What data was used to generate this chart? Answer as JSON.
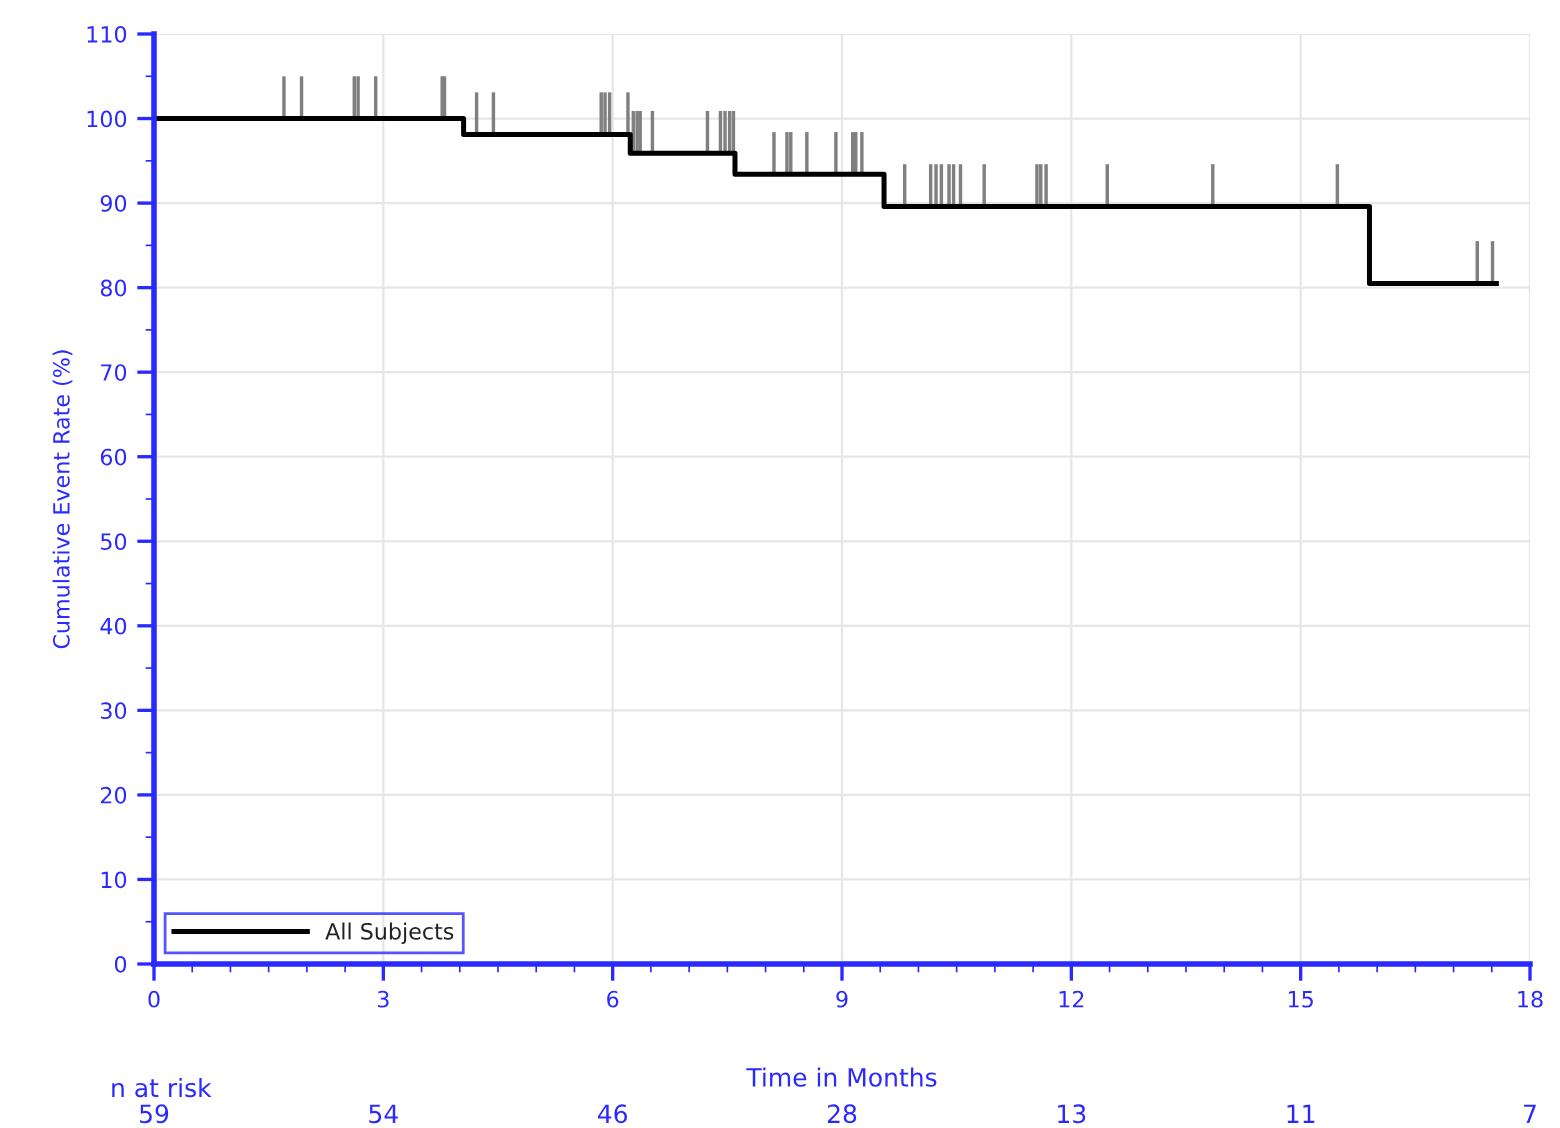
{
  "chart_data": {
    "type": "step",
    "xlabel": "Time in Months",
    "ylabel": "Cumulative Event Rate (%)",
    "series": [
      {
        "name": "All Subjects",
        "color": "#000000",
        "x": [
          0,
          4.05,
          6.23,
          7.6,
          9.55,
          15.9,
          17.56
        ],
        "values": [
          100,
          98.1,
          95.9,
          93.4,
          89.6,
          80.5,
          80.5
        ]
      },
      {
        "type": "bar",
        "color": "#808080",
        "x": [
          1.7,
          1.93,
          2.62,
          2.67,
          2.9,
          3.77,
          3.8,
          4.22,
          4.44,
          5.85,
          5.9,
          5.96,
          6.2,
          6.27,
          6.32,
          6.36,
          6.52,
          7.24,
          7.41,
          7.47,
          7.53,
          7.58,
          8.11,
          8.28,
          8.33,
          8.54,
          8.92,
          9.14,
          9.18,
          9.26,
          9.82,
          10.16,
          10.23,
          10.3,
          10.4,
          10.46,
          10.55,
          10.86,
          11.55,
          11.6,
          11.67,
          12.47,
          13.85,
          15.48,
          17.31,
          17.51
        ],
        "base": [
          100,
          100,
          100,
          100,
          100,
          100,
          100,
          98.1,
          98.1,
          98.1,
          98.1,
          98.1,
          98.1,
          95.9,
          95.9,
          95.9,
          95.9,
          95.9,
          95.9,
          95.9,
          95.9,
          95.9,
          93.4,
          93.4,
          93.4,
          93.4,
          93.4,
          93.4,
          93.4,
          93.4,
          89.6,
          89.6,
          89.6,
          89.6,
          89.6,
          89.6,
          89.6,
          89.6,
          89.6,
          89.6,
          89.6,
          89.6,
          89.6,
          89.6,
          80.5,
          80.5
        ],
        "values": [
          5,
          5,
          5,
          5,
          5,
          5,
          5,
          5,
          5,
          5,
          5,
          5,
          5,
          5,
          5,
          5,
          5,
          5,
          5,
          5,
          5,
          5,
          5,
          5,
          5,
          5,
          5,
          5,
          5,
          5,
          5,
          5,
          5,
          5,
          5,
          5,
          5,
          5,
          5,
          5,
          5,
          5,
          5,
          5,
          5,
          5
        ]
      }
    ],
    "xlim": [
      0,
      18
    ],
    "xticks": [
      0,
      3,
      6,
      9,
      12,
      15,
      18
    ],
    "ylim": [
      0,
      110
    ],
    "yticks": [
      0,
      10,
      20,
      30,
      40,
      50,
      60,
      70,
      80,
      90,
      100,
      110
    ],
    "grid": true,
    "legend": "bottom left",
    "annotations": [
      "n at risk",
      "59",
      "54",
      "46",
      "28",
      "13",
      "11",
      "7"
    ]
  }
}
